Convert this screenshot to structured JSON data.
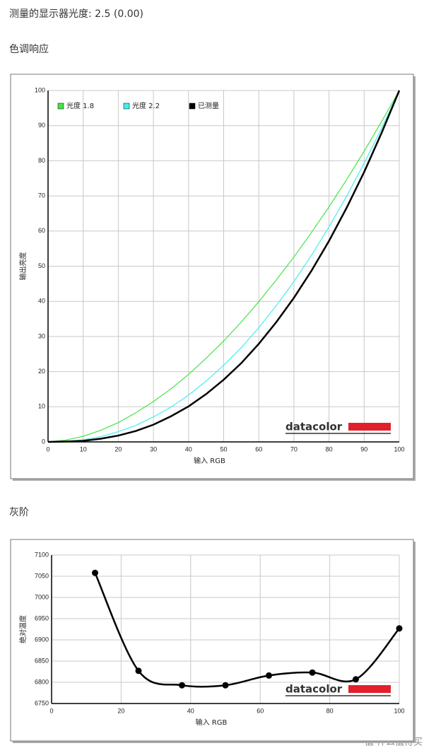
{
  "header": "测量的显示器光度: 2.5 (0.00)",
  "watermark": "值 什么值得买",
  "chart_data": [
    {
      "type": "line",
      "title": "色调响应",
      "x_label": "输入 RGB",
      "y_label": "输出亮度",
      "annotation": "datacolor",
      "x": [
        0,
        5,
        10,
        15,
        20,
        25,
        30,
        35,
        40,
        45,
        50,
        55,
        60,
        65,
        70,
        75,
        80,
        85,
        90,
        95,
        100
      ],
      "series": [
        {
          "name": "光度 1.8",
          "color": "#44e444",
          "values": [
            0,
            0.5,
            1.6,
            3.3,
            5.5,
            8.3,
            11.5,
            15.1,
            19.2,
            23.8,
            28.7,
            34.1,
            39.9,
            46.1,
            52.6,
            59.6,
            66.9,
            74.6,
            82.7,
            91.2,
            100
          ]
        },
        {
          "name": "光度 2.2",
          "color": "#44eeee",
          "values": [
            0,
            0.1,
            0.6,
            1.5,
            2.9,
            4.7,
            7.1,
            9.9,
            13.3,
            17.3,
            21.8,
            26.8,
            32.5,
            38.8,
            45.6,
            53.1,
            61.2,
            69.9,
            79.3,
            89.3,
            100
          ]
        },
        {
          "name": "已测量",
          "color": "#000000",
          "values": [
            0,
            0.1,
            0.3,
            0.9,
            1.8,
            3.1,
            4.9,
            7.3,
            10.1,
            13.6,
            17.7,
            22.4,
            27.9,
            34.1,
            41.0,
            48.7,
            57.2,
            66.6,
            76.8,
            88.0,
            100
          ]
        }
      ],
      "xlim": [
        0,
        100
      ],
      "xticks": [
        0,
        10,
        20,
        30,
        40,
        50,
        60,
        70,
        80,
        90,
        100
      ],
      "ylim": [
        0,
        100
      ],
      "yticks": [
        0,
        10,
        20,
        30,
        40,
        50,
        60,
        70,
        80,
        90,
        100
      ],
      "grid": true,
      "legend": "upper left"
    },
    {
      "type": "line",
      "title": "灰阶",
      "x_label": "输入 RGB",
      "y_label": "绝对温度",
      "annotation": "datacolor",
      "x": [
        12.5,
        25,
        37.5,
        50,
        62.5,
        75,
        87.5,
        100
      ],
      "values": [
        7058,
        6827,
        6793,
        6793,
        6816,
        6823,
        6807,
        6927
      ],
      "color": "#000000",
      "markers": true,
      "smooth": true,
      "xlim": [
        0,
        100
      ],
      "xticks": [
        0,
        20,
        40,
        60,
        80,
        100
      ],
      "ylim": [
        6750,
        7100
      ],
      "yticks": [
        6750,
        6800,
        6850,
        6900,
        6950,
        7000,
        7050,
        7100
      ],
      "grid": true
    }
  ]
}
